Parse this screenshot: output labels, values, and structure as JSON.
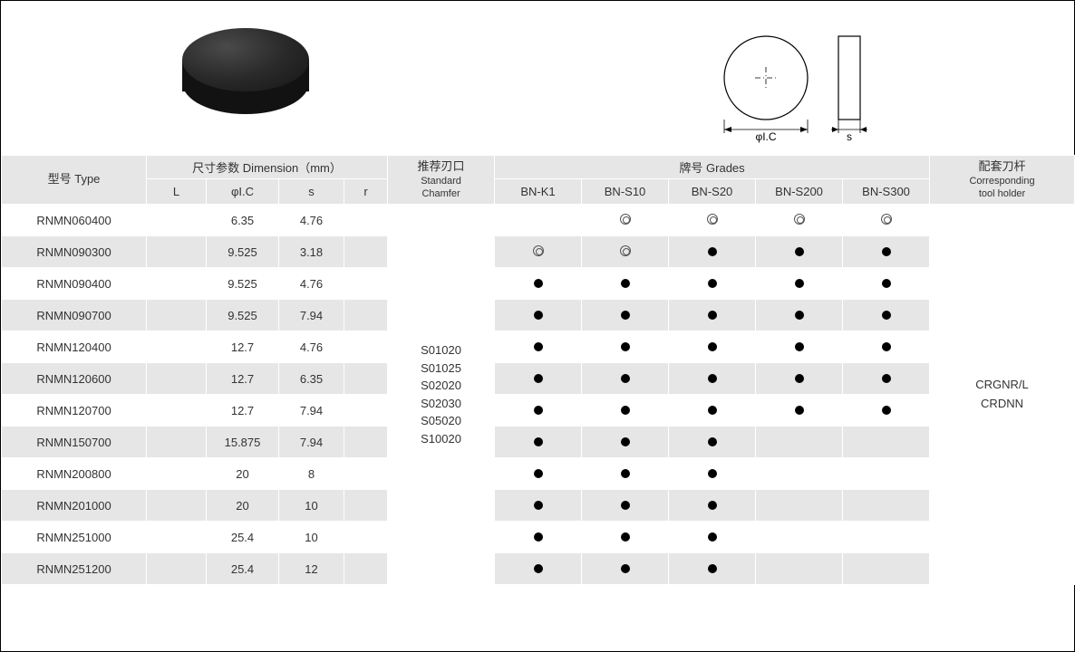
{
  "diagram": {
    "ic_label": "φI.C",
    "s_label": "s"
  },
  "headers": {
    "type": {
      "cn": "型号",
      "en": "Type"
    },
    "dimension": {
      "cn": "尺寸参数",
      "en": "Dimension（mm）"
    },
    "L": "L",
    "ic": "φI.C",
    "s": "s",
    "r": "r",
    "chamfer": {
      "cn": "推荐刃口",
      "en1": "Standard",
      "en2": "Chamfer"
    },
    "grades": {
      "cn": "牌号",
      "en": "Grades"
    },
    "holder": {
      "cn": "配套刀杆",
      "en1": "Corresponding",
      "en2": "tool holder"
    },
    "grade_cols": [
      "BN-K1",
      "BN-S10",
      "BN-S20",
      "BN-S200",
      "BN-S300"
    ]
  },
  "chamfer_values": [
    "S01020",
    "S01025",
    "S02020",
    "S02030",
    "S05020",
    "S10020"
  ],
  "holder_values": [
    "CRGNR/L",
    "CRDNN"
  ],
  "rows": [
    {
      "type": "RNMN060400",
      "L": "",
      "ic": "6.35",
      "s": "4.76",
      "r": "",
      "marks": [
        "",
        "o",
        "o",
        "o",
        "o"
      ]
    },
    {
      "type": "RNMN090300",
      "L": "",
      "ic": "9.525",
      "s": "3.18",
      "r": "",
      "marks": [
        "o",
        "o",
        "d",
        "d",
        "d"
      ]
    },
    {
      "type": "RNMN090400",
      "L": "",
      "ic": "9.525",
      "s": "4.76",
      "r": "",
      "marks": [
        "d",
        "d",
        "d",
        "d",
        "d"
      ]
    },
    {
      "type": "RNMN090700",
      "L": "",
      "ic": "9.525",
      "s": "7.94",
      "r": "",
      "marks": [
        "d",
        "d",
        "d",
        "d",
        "d"
      ]
    },
    {
      "type": "RNMN120400",
      "L": "",
      "ic": "12.7",
      "s": "4.76",
      "r": "",
      "marks": [
        "d",
        "d",
        "d",
        "d",
        "d"
      ]
    },
    {
      "type": "RNMN120600",
      "L": "",
      "ic": "12.7",
      "s": "6.35",
      "r": "",
      "marks": [
        "d",
        "d",
        "d",
        "d",
        "d"
      ]
    },
    {
      "type": "RNMN120700",
      "L": "",
      "ic": "12.7",
      "s": "7.94",
      "r": "",
      "marks": [
        "d",
        "d",
        "d",
        "d",
        "d"
      ]
    },
    {
      "type": "RNMN150700",
      "L": "",
      "ic": "15.875",
      "s": "7.94",
      "r": "",
      "marks": [
        "d",
        "d",
        "d",
        "",
        ""
      ]
    },
    {
      "type": "RNMN200800",
      "L": "",
      "ic": "20",
      "s": "8",
      "r": "",
      "marks": [
        "d",
        "d",
        "d",
        "",
        ""
      ]
    },
    {
      "type": "RNMN201000",
      "L": "",
      "ic": "20",
      "s": "10",
      "r": "",
      "marks": [
        "d",
        "d",
        "d",
        "",
        ""
      ]
    },
    {
      "type": "RNMN251000",
      "L": "",
      "ic": "25.4",
      "s": "10",
      "r": "",
      "marks": [
        "d",
        "d",
        "d",
        "",
        ""
      ]
    },
    {
      "type": "RNMN251200",
      "L": "",
      "ic": "25.4",
      "s": "12",
      "r": "",
      "marks": [
        "d",
        "d",
        "d",
        "",
        ""
      ]
    }
  ],
  "colors": {
    "header_bg": "#e6e6e6",
    "row_alt_bg": "#e6e6e6",
    "border": "#ffffff",
    "text": "#333333",
    "dot": "#000000"
  }
}
